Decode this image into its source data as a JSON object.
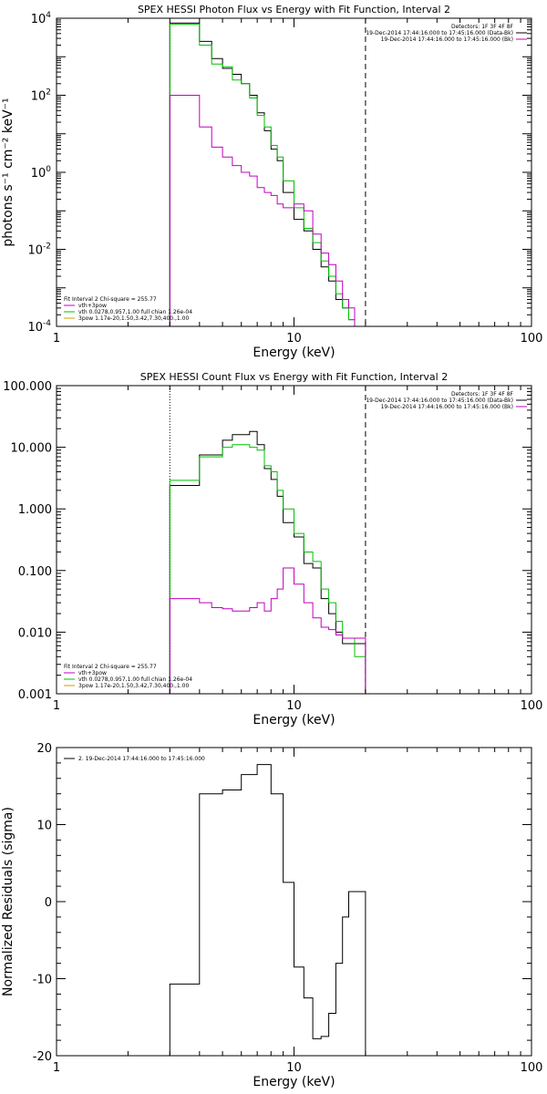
{
  "chart_data": [
    {
      "type": "line",
      "title": "SPEX HESSI Photon Flux vs Energy with Fit Function, Interval 2",
      "xlabel": "Energy (keV)",
      "ylabel": "photons s⁻¹ cm⁻² keV⁻¹",
      "xscale": "log",
      "yscale": "log",
      "xlim": [
        1,
        100
      ],
      "ylim": [
        0.0001,
        10000
      ],
      "xticks": [
        {
          "v": 1,
          "label": "1"
        },
        {
          "v": 10,
          "label": "10"
        },
        {
          "v": 100,
          "label": "100"
        }
      ],
      "yticks": [
        {
          "v": 10000,
          "base": "10",
          "exp": "4"
        },
        {
          "v": 100,
          "base": "10",
          "exp": "2"
        },
        {
          "v": 1,
          "base": "10",
          "exp": "0"
        },
        {
          "v": 0.01,
          "base": "10",
          "exp": "-2"
        },
        {
          "v": 0.0001,
          "base": "10",
          "exp": "-4"
        }
      ],
      "vlines": [
        {
          "x": 3,
          "style": "dotted",
          "color": "#00c000"
        },
        {
          "x": 20,
          "style": "dashed",
          "color": "#000000"
        }
      ],
      "legend_top": [
        "Detectors: 1F 3F 4F 8F",
        "19-Dec-2014 17:44:16.000 to 17:45:16.000 (Data-Bk)",
        "19-Dec-2014 17:44:16.000 to 17:45:16.000 (Bk)"
      ],
      "legend_bottom_title": "Fit Interval 2   Chi-square = 255.77",
      "legend_bottom": [
        {
          "label": "vth+3pow",
          "color": "#c000c0"
        },
        {
          "label": "vth 0.0278,0.957,1.00  full chian 1.26e-04",
          "color": "#00c000"
        },
        {
          "label": "3pow 1.17e-20,1.50,3.42,7.30,400.,1.00",
          "color": "#d0a000"
        }
      ],
      "edges": [
        3,
        3.5,
        4,
        4.5,
        5,
        5.5,
        6,
        6.5,
        7,
        7.5,
        8,
        8.5,
        9,
        10,
        11,
        12,
        13,
        14,
        15,
        16,
        17,
        18,
        20
      ],
      "series": [
        {
          "name": "19-Dec-2014 17:44:16.000 to 17:45:16.000 (Data-Bk)",
          "color": "#000000",
          "values": [
            7500,
            7500,
            2500,
            900,
            500,
            350,
            200,
            100,
            35,
            12,
            4,
            2,
            0.3,
            0.06,
            0.03,
            0.01,
            0.0035,
            0.0015,
            0.0005,
            0.0003,
            0.00015,
            0.0001
          ]
        },
        {
          "name": "",
          "color": "#00c000",
          "values": [
            7000,
            7000,
            2000,
            650,
            550,
            250,
            200,
            85,
            30,
            15,
            5,
            2.5,
            0.6,
            0.12,
            0.035,
            0.015,
            0.005,
            0.002,
            0.0007,
            0.0003,
            0.00015,
            0.0001
          ]
        },
        {
          "name": "",
          "color": "#c000c0",
          "values": [
            100,
            100,
            15,
            4.5,
            2.5,
            1.5,
            1,
            0.8,
            0.4,
            0.3,
            0.25,
            0.15,
            0.12,
            0.15,
            0.1,
            0.025,
            0.008,
            0.004,
            0.0015,
            0.0005,
            0.0003,
            0.0001
          ]
        }
      ]
    },
    {
      "type": "line",
      "title": "SPEX HESSI Count Flux vs Energy with Fit Function, Interval 2",
      "xlabel": "Energy (keV)",
      "ylabel": "",
      "xscale": "log",
      "yscale": "log",
      "xlim": [
        1,
        100
      ],
      "ylim": [
        0.001,
        100
      ],
      "xticks": [
        {
          "v": 1,
          "label": "1"
        },
        {
          "v": 10,
          "label": "10"
        },
        {
          "v": 100,
          "label": "100"
        }
      ],
      "yticks": [
        {
          "v": 100,
          "label": "100.000"
        },
        {
          "v": 10,
          "label": "10.000"
        },
        {
          "v": 1,
          "label": "1.000"
        },
        {
          "v": 0.1,
          "label": "0.100"
        },
        {
          "v": 0.01,
          "label": "0.010"
        },
        {
          "v": 0.001,
          "label": "0.001"
        }
      ],
      "vlines": [
        {
          "x": 3,
          "style": "dotted",
          "color": "#000000"
        },
        {
          "x": 20,
          "style": "dashed",
          "color": "#000000"
        }
      ],
      "legend_top": [
        "Detectors: 1F 3F 4F 8F",
        "19-Dec-2014 17:44:16.000 to 17:45:16.000 (Data-Bk)",
        "19-Dec-2014 17:44:16.000 to 17:45:16.000 (Bk)"
      ],
      "legend_bottom_title": "Fit Interval 2   Chi-square = 255.77",
      "legend_bottom": [
        {
          "label": "vth+3pow",
          "color": "#c000c0"
        },
        {
          "label": "vth 0.0278,0.957,1.00  full chian 1.26e-04",
          "color": "#00c000"
        },
        {
          "label": "3pow 1.17e-20,1.50,3.42,7.30,400.,1.00",
          "color": "#d0a000"
        }
      ],
      "edges": [
        3,
        3.5,
        4,
        4.5,
        5,
        5.5,
        6,
        6.5,
        7,
        7.5,
        8,
        8.5,
        9,
        10,
        11,
        12,
        13,
        14,
        15,
        16,
        17,
        18,
        20
      ],
      "series": [
        {
          "name": "19-Dec-2014 17:44:16.000 to 17:45:16.000 (Data-Bk)",
          "color": "#000000",
          "values": [
            2.4,
            2.4,
            7.5,
            7.5,
            13,
            16,
            16,
            18,
            11,
            4.5,
            3,
            1.6,
            0.6,
            0.35,
            0.13,
            0.11,
            0.035,
            0.02,
            0.01,
            0.0065,
            0.0065,
            0.0065
          ]
        },
        {
          "name": "",
          "color": "#00c000",
          "values": [
            2.9,
            2.9,
            7,
            7,
            10,
            11,
            11,
            10,
            9,
            5,
            4,
            2,
            1,
            0.4,
            0.2,
            0.14,
            0.05,
            0.03,
            0.015,
            0.008,
            0.008,
            0.004
          ]
        },
        {
          "name": "",
          "color": "#c000c0",
          "values": [
            0.035,
            0.035,
            0.03,
            0.025,
            0.024,
            0.022,
            0.022,
            0.025,
            0.03,
            0.022,
            0.035,
            0.05,
            0.11,
            0.06,
            0.03,
            0.017,
            0.012,
            0.011,
            0.009,
            0.008,
            0.008,
            0.008
          ]
        }
      ]
    },
    {
      "type": "line",
      "title": "",
      "xlabel": "Energy (keV)",
      "ylabel": "Normalized Residuals (sigma)",
      "xscale": "log",
      "yscale": "linear",
      "xlim": [
        1,
        100
      ],
      "ylim": [
        -20,
        20
      ],
      "xticks": [
        {
          "v": 1,
          "label": "1"
        },
        {
          "v": 10,
          "label": "10"
        },
        {
          "v": 100,
          "label": "100"
        }
      ],
      "yticks": [
        {
          "v": 20,
          "label": "20"
        },
        {
          "v": 10,
          "label": "10"
        },
        {
          "v": 0,
          "label": "0"
        },
        {
          "v": -10,
          "label": "-10"
        },
        {
          "v": -20,
          "label": "-20"
        }
      ],
      "vlines": [],
      "legend_top": [],
      "legend_topleft": "2. 19-Dec-2014 17:44:16.000 to 17:45:16.000",
      "legend_bottom": [],
      "edges": [
        3,
        4,
        5,
        6,
        7,
        8,
        9,
        10,
        11,
        12,
        13,
        14,
        15,
        16,
        17,
        18,
        20
      ],
      "series": [
        {
          "name": "2. 19-Dec-2014 17:44:16.000 to 17:45:16.000",
          "color": "#000000",
          "values": [
            -10.7,
            14,
            14.5,
            16.5,
            17.8,
            14,
            2.5,
            -8.5,
            -12.5,
            -17.8,
            -17.5,
            -14.5,
            -8,
            -2,
            1.3,
            1.3
          ]
        }
      ]
    }
  ]
}
